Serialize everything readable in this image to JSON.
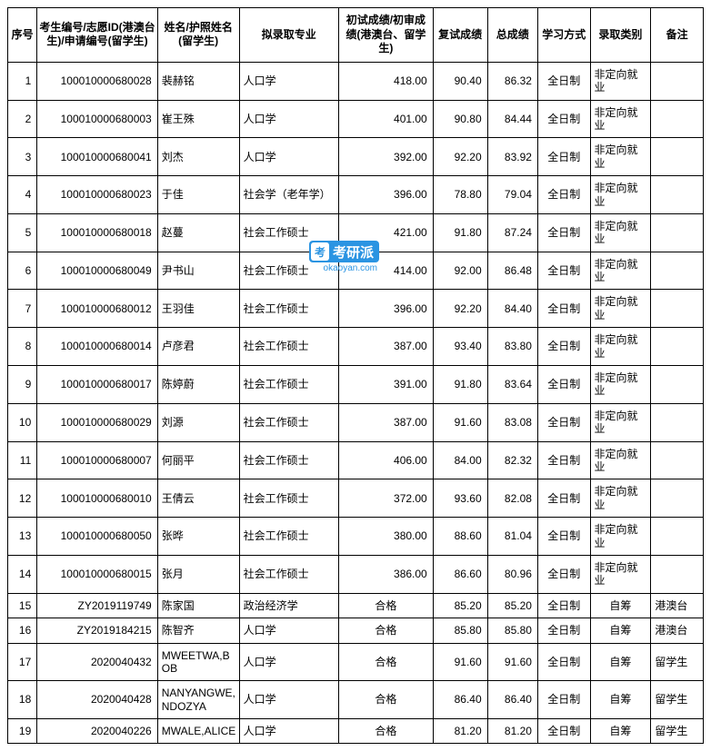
{
  "headers": {
    "seq": "序号",
    "id": "考生编号/志愿ID(港澳台生)/申请编号(留学生)",
    "name": "姓名/护照姓名(留学生)",
    "major": "拟录取专业",
    "score1": "初试成绩/初审成绩(港澳台、留学生)",
    "score2": "复试成绩",
    "total": "总成绩",
    "mode": "学习方式",
    "type": "录取类别",
    "remark": "备注"
  },
  "rows": [
    {
      "seq": "1",
      "id": "100010000680028",
      "name": "裴赫铭",
      "major": "人口学",
      "score1": "418.00",
      "score2": "90.40",
      "total": "86.32",
      "mode": "全日制",
      "type": "非定向就业",
      "remark": ""
    },
    {
      "seq": "2",
      "id": "100010000680003",
      "name": "崔王殊",
      "major": "人口学",
      "score1": "401.00",
      "score2": "90.80",
      "total": "84.44",
      "mode": "全日制",
      "type": "非定向就业",
      "remark": ""
    },
    {
      "seq": "3",
      "id": "100010000680041",
      "name": "刘杰",
      "major": "人口学",
      "score1": "392.00",
      "score2": "92.20",
      "total": "83.92",
      "mode": "全日制",
      "type": "非定向就业",
      "remark": ""
    },
    {
      "seq": "4",
      "id": "100010000680023",
      "name": "于佳",
      "major": "社会学（老年学）",
      "score1": "396.00",
      "score2": "78.80",
      "total": "79.04",
      "mode": "全日制",
      "type": "非定向就业",
      "remark": ""
    },
    {
      "seq": "5",
      "id": "100010000680018",
      "name": "赵蔓",
      "major": "社会工作硕士",
      "score1": "421.00",
      "score2": "91.80",
      "total": "87.24",
      "mode": "全日制",
      "type": "非定向就业",
      "remark": ""
    },
    {
      "seq": "6",
      "id": "100010000680049",
      "name": "尹书山",
      "major": "社会工作硕士",
      "score1": "414.00",
      "score2": "92.00",
      "total": "86.48",
      "mode": "全日制",
      "type": "非定向就业",
      "remark": ""
    },
    {
      "seq": "7",
      "id": "100010000680012",
      "name": "王羽佳",
      "major": "社会工作硕士",
      "score1": "396.00",
      "score2": "92.20",
      "total": "84.40",
      "mode": "全日制",
      "type": "非定向就业",
      "remark": ""
    },
    {
      "seq": "8",
      "id": "100010000680014",
      "name": "卢彦君",
      "major": "社会工作硕士",
      "score1": "387.00",
      "score2": "93.40",
      "total": "83.80",
      "mode": "全日制",
      "type": "非定向就业",
      "remark": ""
    },
    {
      "seq": "9",
      "id": "100010000680017",
      "name": "陈婷蔚",
      "major": "社会工作硕士",
      "score1": "391.00",
      "score2": "91.80",
      "total": "83.64",
      "mode": "全日制",
      "type": "非定向就业",
      "remark": ""
    },
    {
      "seq": "10",
      "id": "100010000680029",
      "name": "刘源",
      "major": "社会工作硕士",
      "score1": "387.00",
      "score2": "91.60",
      "total": "83.08",
      "mode": "全日制",
      "type": "非定向就业",
      "remark": ""
    },
    {
      "seq": "11",
      "id": "100010000680007",
      "name": "何丽平",
      "major": "社会工作硕士",
      "score1": "406.00",
      "score2": "84.00",
      "total": "82.32",
      "mode": "全日制",
      "type": "非定向就业",
      "remark": ""
    },
    {
      "seq": "12",
      "id": "100010000680010",
      "name": "王倩云",
      "major": "社会工作硕士",
      "score1": "372.00",
      "score2": "93.60",
      "total": "82.08",
      "mode": "全日制",
      "type": "非定向就业",
      "remark": ""
    },
    {
      "seq": "13",
      "id": "100010000680050",
      "name": "张晔",
      "major": "社会工作硕士",
      "score1": "380.00",
      "score2": "88.60",
      "total": "81.04",
      "mode": "全日制",
      "type": "非定向就业",
      "remark": ""
    },
    {
      "seq": "14",
      "id": "100010000680015",
      "name": "张月",
      "major": "社会工作硕士",
      "score1": "386.00",
      "score2": "86.60",
      "total": "80.96",
      "mode": "全日制",
      "type": "非定向就业",
      "remark": ""
    },
    {
      "seq": "15",
      "id": "ZY2019119749",
      "name": "陈家国",
      "major": "政治经济学",
      "score1": "合格",
      "score2": "85.20",
      "total": "85.20",
      "mode": "全日制",
      "type": "自筹",
      "remark": "港澳台"
    },
    {
      "seq": "16",
      "id": "ZY2019184215",
      "name": "陈智齐",
      "major": "人口学",
      "score1": "合格",
      "score2": "85.80",
      "total": "85.80",
      "mode": "全日制",
      "type": "自筹",
      "remark": "港澳台"
    },
    {
      "seq": "17",
      "id": "2020040432",
      "name": "MWEETWA,BOB",
      "major": "人口学",
      "score1": "合格",
      "score2": "91.60",
      "total": "91.60",
      "mode": "全日制",
      "type": "自筹",
      "remark": "留学生"
    },
    {
      "seq": "18",
      "id": "2020040428",
      "name": "NANYANGWE,NDOZYA",
      "major": "人口学",
      "score1": "合格",
      "score2": "86.40",
      "total": "86.40",
      "mode": "全日制",
      "type": "自筹",
      "remark": "留学生"
    },
    {
      "seq": "19",
      "id": "2020040226",
      "name": "MWALE,ALICE",
      "major": "人口学",
      "score1": "合格",
      "score2": "81.20",
      "total": "81.20",
      "mode": "全日制",
      "type": "自筹",
      "remark": "留学生"
    }
  ],
  "watermark": {
    "brand": "考研派",
    "url": "okaoyan.com"
  }
}
